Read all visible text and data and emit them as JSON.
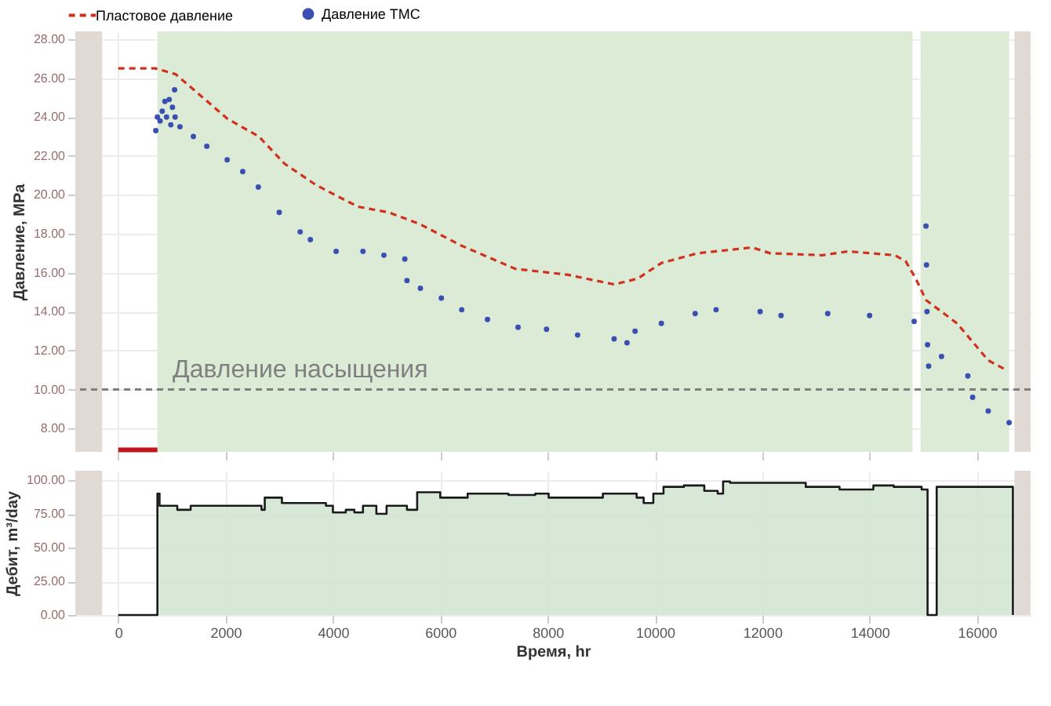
{
  "chart_data": [
    {
      "type": "line",
      "ylabel": "Давление, MPa",
      "xlim": [
        -800,
        17000
      ],
      "ylim": [
        6.8,
        28.4
      ],
      "xticks": [
        {
          "value": 0,
          "label": null
        },
        {
          "value": 2000,
          "label": null
        },
        {
          "value": 4000,
          "label": null
        },
        {
          "value": 6000,
          "label": null
        },
        {
          "value": 8000,
          "label": null
        },
        {
          "value": 10000,
          "label": null
        },
        {
          "value": 12000,
          "label": null
        },
        {
          "value": 14000,
          "label": null
        },
        {
          "value": 16000,
          "label": null
        }
      ],
      "yticks": [
        {
          "value": 8,
          "label": "8.00"
        },
        {
          "value": 10,
          "label": "10.00"
        },
        {
          "value": 12,
          "label": "12.00"
        },
        {
          "value": 14,
          "label": "14.00"
        },
        {
          "value": 16,
          "label": "16.00"
        },
        {
          "value": 18,
          "label": "18.00"
        },
        {
          "value": 20,
          "label": "20.00"
        },
        {
          "value": 22,
          "label": "22.00"
        },
        {
          "value": 24,
          "label": "24.00"
        },
        {
          "value": 26,
          "label": "26.00"
        },
        {
          "value": 28,
          "label": "28.00"
        }
      ],
      "tick_labels": "y",
      "grid": true,
      "legend": "top",
      "bands": [
        {
          "axis": "x",
          "from": -800,
          "to": -300,
          "color": "#e0d9d4"
        },
        {
          "axis": "x",
          "from": 730,
          "to": 14800,
          "color": "#dcebd5"
        },
        {
          "axis": "x",
          "from": 14950,
          "to": 16600,
          "color": "#dcebd5"
        },
        {
          "axis": "x",
          "from": 16700,
          "to": 17000,
          "color": "#e0d9d4"
        }
      ],
      "ref_lines": [
        {
          "axis": "y",
          "value": 10,
          "label": "Давление насыщения",
          "color": "#7f7f7f",
          "line_style": "dashed"
        }
      ],
      "series": [
        {
          "name": "Пластовое давление",
          "type": "line",
          "line_style": "dashed",
          "color": "#d0311f",
          "x": [
            0,
            690,
            1070,
            2040,
            2620,
            3100,
            3690,
            4460,
            5040,
            5620,
            6390,
            7400,
            8370,
            9240,
            9680,
            10120,
            10790,
            11810,
            12150,
            13120,
            13600,
            14470,
            14670,
            14860,
            15050,
            15630,
            16210,
            16550
          ],
          "values": [
            26.5,
            26.5,
            26.2,
            23.9,
            23.0,
            21.6,
            20.5,
            19.4,
            19.1,
            18.5,
            17.4,
            16.2,
            15.9,
            15.4,
            15.7,
            16.5,
            17.0,
            17.3,
            17.0,
            16.9,
            17.1,
            16.9,
            16.6,
            15.7,
            14.6,
            13.4,
            11.5,
            11.0
          ]
        },
        {
          "name": "Давление ТМС",
          "type": "scatter",
          "marker": "circle",
          "color": "#3b4fb3",
          "x": [
            700,
            730,
            780,
            820,
            870,
            900,
            950,
            980,
            1010,
            1050,
            1060,
            1150,
            1400,
            1650,
            2030,
            2320,
            2610,
            3000,
            3390,
            3580,
            4060,
            4560,
            4950,
            5340,
            5380,
            5630,
            6020,
            6400,
            6880,
            7450,
            7980,
            8560,
            9240,
            9480,
            9630,
            10120,
            10750,
            11140,
            11960,
            12350,
            13220,
            14000,
            14830,
            15050,
            15060,
            15070,
            15080,
            15100,
            15340,
            15830,
            15920,
            16210,
            16600
          ],
          "values": [
            23.3,
            24.0,
            23.8,
            24.3,
            24.8,
            24.0,
            24.9,
            23.6,
            24.5,
            25.4,
            24.0,
            23.5,
            23.0,
            22.5,
            21.8,
            21.2,
            20.4,
            19.1,
            18.1,
            17.7,
            17.1,
            17.1,
            16.9,
            16.7,
            15.6,
            15.2,
            14.7,
            14.1,
            13.6,
            13.2,
            13.1,
            12.8,
            12.6,
            12.4,
            13.0,
            13.4,
            13.9,
            14.1,
            14.0,
            13.8,
            13.9,
            13.8,
            13.5,
            18.4,
            16.4,
            14.0,
            12.3,
            11.2,
            11.7,
            10.7,
            9.6,
            8.9,
            8.3
          ]
        },
        {
          "type": "line",
          "line_style": "solid",
          "color": "#c0151a",
          "x": [
            0,
            730
          ],
          "values": [
            6.9,
            6.9
          ]
        }
      ]
    },
    {
      "type": "step",
      "xlabel": "Время, hr",
      "ylabel": "Дебит, m³/day",
      "color": "#1a1a1a",
      "xlim": [
        -800,
        17000
      ],
      "ylim": [
        0,
        107
      ],
      "xticks": [
        0,
        2000,
        4000,
        6000,
        8000,
        10000,
        12000,
        14000,
        16000
      ],
      "yticks": [
        {
          "value": 0,
          "label": "0.00"
        },
        {
          "value": 25,
          "label": "25.00"
        },
        {
          "value": 50,
          "label": "50.00"
        },
        {
          "value": 75,
          "label": "75.00"
        },
        {
          "value": 100,
          "label": "100.00"
        }
      ],
      "grid": true,
      "bands": [
        {
          "axis": "x",
          "from": -800,
          "to": -300,
          "color": "#e0d9d4"
        },
        {
          "axis": "x",
          "from": 16700,
          "to": 17000,
          "color": "#e0d9d4"
        }
      ],
      "x": [
        0,
        730,
        770,
        1100,
        1350,
        2100,
        2670,
        2730,
        3050,
        3870,
        4000,
        4240,
        4400,
        4560,
        4810,
        5000,
        5380,
        5570,
        6000,
        6510,
        7270,
        7770,
        8020,
        9030,
        9660,
        9790,
        9970,
        10160,
        10540,
        10920,
        11170,
        11270,
        11400,
        12810,
        13440,
        14070,
        14450,
        14970,
        15080,
        15250,
        16670
      ],
      "values": [
        0,
        90,
        81,
        78,
        81,
        81,
        78,
        87,
        83,
        81,
        76,
        78,
        76,
        81,
        75,
        81,
        78,
        91,
        87,
        90,
        89,
        90,
        87,
        90,
        87,
        83,
        90,
        95,
        96,
        92,
        90,
        99,
        98,
        95,
        93,
        96,
        95,
        93,
        0,
        95,
        0
      ]
    }
  ]
}
